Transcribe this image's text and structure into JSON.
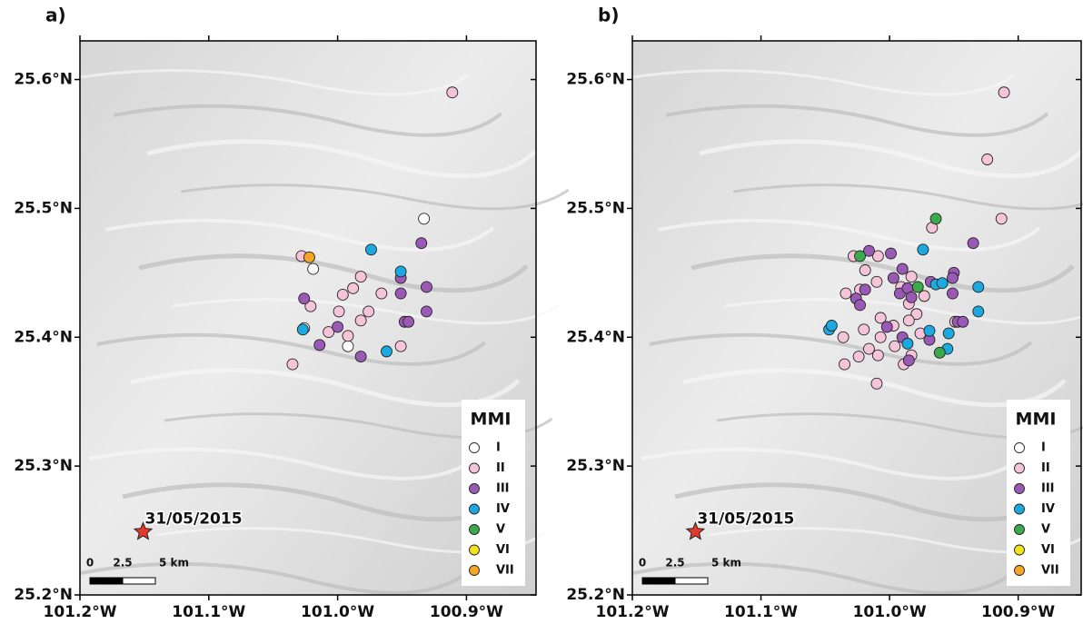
{
  "chart_data": [
    {
      "type": "scatter",
      "title": "a)",
      "legend_title": "MMI",
      "legend_position": "lower right",
      "xlim": [
        -101.2,
        -100.846
      ],
      "ylim": [
        25.2,
        25.63
      ],
      "xticks": [
        {
          "value": -101.2,
          "label": "101.2°W"
        },
        {
          "value": -101.1,
          "label": "101.1°W"
        },
        {
          "value": -101.0,
          "label": "101.0°W"
        },
        {
          "value": -100.9,
          "label": "100.9°W"
        }
      ],
      "yticks": [
        {
          "value": 25.2,
          "label": "25.2°N"
        },
        {
          "value": 25.3,
          "label": "25.3°N"
        },
        {
          "value": 25.4,
          "label": "25.4°N"
        },
        {
          "value": 25.5,
          "label": "25.5°N"
        },
        {
          "value": 25.6,
          "label": "25.6°N"
        }
      ],
      "event": {
        "label": "31/05/2015",
        "x": -101.151,
        "y": 25.249
      },
      "scale_bar": [
        "0",
        "2.5",
        "5 km"
      ],
      "series": [
        {
          "name": "I",
          "color": "#ffffff",
          "x": [
            -100.933,
            -101.019,
            -101.026,
            -100.992
          ],
          "values": [
            25.492,
            25.453,
            25.407,
            25.393
          ]
        },
        {
          "name": "II",
          "color": "#f6c4d8",
          "x": [
            -100.911,
            -101.028,
            -101.021,
            -100.982,
            -100.988,
            -100.996,
            -100.999,
            -100.976,
            -100.966,
            -100.982,
            -100.992,
            -101.007,
            -101.035,
            -100.951
          ],
          "values": [
            25.59,
            25.463,
            25.424,
            25.447,
            25.438,
            25.433,
            25.42,
            25.42,
            25.434,
            25.413,
            25.401,
            25.404,
            25.379,
            25.393
          ]
        },
        {
          "name": "III",
          "color": "#9b59b6",
          "x": [
            -100.935,
            -100.951,
            -100.951,
            -101.026,
            -100.931,
            -100.931,
            -100.948,
            -100.945,
            -101.0,
            -101.014,
            -100.982
          ],
          "values": [
            25.473,
            25.446,
            25.434,
            25.43,
            25.439,
            25.42,
            25.412,
            25.412,
            25.408,
            25.394,
            25.385
          ]
        },
        {
          "name": "IV",
          "color": "#1ba9e0",
          "x": [
            -100.974,
            -100.951,
            -101.027,
            -100.962
          ],
          "values": [
            25.468,
            25.451,
            25.406,
            25.389
          ]
        },
        {
          "name": "V",
          "color": "#3aaa4a",
          "x": [],
          "values": []
        },
        {
          "name": "VI",
          "color": "#f2e21d",
          "x": [],
          "values": []
        },
        {
          "name": "VII",
          "color": "#f5a623",
          "x": [
            -101.022
          ],
          "values": [
            25.462
          ]
        }
      ]
    },
    {
      "type": "scatter",
      "title": "b)",
      "legend_title": "MMI",
      "legend_position": "lower right",
      "xlim": [
        -101.2,
        -100.851
      ],
      "ylim": [
        25.2,
        25.63
      ],
      "xticks": [
        {
          "value": -101.2,
          "label": "101.2°W"
        },
        {
          "value": -101.1,
          "label": "101.1°W"
        },
        {
          "value": -101.0,
          "label": "101.0°W"
        },
        {
          "value": -100.9,
          "label": "100.9°W"
        }
      ],
      "yticks": [
        {
          "value": 25.2,
          "label": "25.2°N"
        },
        {
          "value": 25.3,
          "label": "25.3°N"
        },
        {
          "value": 25.4,
          "label": "25.4°N"
        },
        {
          "value": 25.5,
          "label": "25.5°N"
        },
        {
          "value": 25.6,
          "label": "25.6°N"
        }
      ],
      "event": {
        "label": "31/05/2015",
        "x": -101.151,
        "y": 25.249
      },
      "scale_bar": [
        "0",
        "2.5",
        "5 km"
      ],
      "series": [
        {
          "name": "I",
          "color": "#ffffff",
          "x": [],
          "values": []
        },
        {
          "name": "II",
          "color": "#f6c4d8",
          "x": [
            -100.911,
            -100.924,
            -100.913,
            -100.967,
            -101.028,
            -101.009,
            -101.019,
            -101.034,
            -101.023,
            -101.01,
            -100.991,
            -100.983,
            -100.973,
            -100.979,
            -100.985,
            -100.997,
            -100.976,
            -101.007,
            -101.02,
            -101.036,
            -101.035,
            -101.016,
            -101.009,
            -101.024,
            -100.996,
            -100.983,
            -100.989,
            -101.01,
            -101.007,
            -100.949,
            -100.985
          ],
          "values": [
            25.59,
            25.538,
            25.492,
            25.485,
            25.463,
            25.463,
            25.452,
            25.434,
            25.437,
            25.443,
            25.439,
            25.447,
            25.432,
            25.418,
            25.413,
            25.409,
            25.403,
            25.4,
            25.406,
            25.4,
            25.379,
            25.391,
            25.386,
            25.385,
            25.393,
            25.386,
            25.379,
            25.364,
            25.415,
            25.412,
            25.426
          ]
        },
        {
          "name": "III",
          "color": "#9b59b6",
          "x": [
            -101.016,
            -100.999,
            -100.99,
            -100.935,
            -100.95,
            -100.951,
            -100.951,
            -101.026,
            -101.023,
            -100.997,
            -100.992,
            -100.986,
            -100.983,
            -100.968,
            -100.947,
            -100.943,
            -101.002,
            -100.969,
            -100.99,
            -100.985,
            -101.019
          ],
          "values": [
            25.467,
            25.465,
            25.453,
            25.473,
            25.45,
            25.446,
            25.434,
            25.43,
            25.425,
            25.446,
            25.434,
            25.438,
            25.431,
            25.443,
            25.412,
            25.412,
            25.408,
            25.398,
            25.4,
            25.382,
            25.437
          ]
        },
        {
          "name": "IV",
          "color": "#1ba9e0",
          "x": [
            -100.974,
            -100.964,
            -100.959,
            -100.931,
            -100.931,
            -100.954,
            -100.969,
            -100.986,
            -101.047,
            -101.045,
            -100.955
          ],
          "values": [
            25.468,
            25.441,
            25.442,
            25.439,
            25.42,
            25.403,
            25.405,
            25.395,
            25.406,
            25.409,
            25.391
          ]
        },
        {
          "name": "V",
          "color": "#3aaa4a",
          "x": [
            -100.964,
            -101.023,
            -100.978,
            -100.961
          ],
          "values": [
            25.492,
            25.463,
            25.439,
            25.388
          ]
        },
        {
          "name": "VI",
          "color": "#f2e21d",
          "x": [],
          "values": []
        },
        {
          "name": "VII",
          "color": "#f5a623",
          "x": [],
          "values": []
        }
      ]
    }
  ]
}
